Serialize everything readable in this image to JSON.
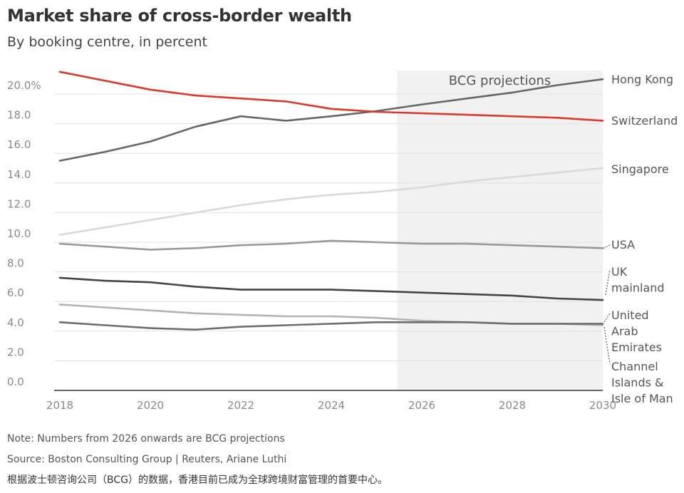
{
  "title": "Market share of cross-border wealth",
  "subtitle": "By booking centre, in percent",
  "note": "Note: Numbers from 2026 onwards are BCG projections",
  "source": "Source: Boston Consulting Group | Reuters, Ariane Luthi",
  "chinese_note": "根据波士顿咨询公司（BCG）的数据，香港目前已成为全球跨境财富管理的首要中心。",
  "chart_data": {
    "type": "line",
    "title": "Market share of cross-border wealth",
    "subtitle": "By booking centre, in percent",
    "x": [
      2018,
      2019,
      2020,
      2021,
      2022,
      2023,
      2024,
      2025,
      2026,
      2027,
      2028,
      2029,
      2030
    ],
    "x_ticks": [
      "2018",
      "2020",
      "2022",
      "2024",
      "2026",
      "2028",
      "2030"
    ],
    "y_ticks": [
      "0.0",
      "2.0",
      "4.0",
      "6.0",
      "8.0",
      "10.0",
      "12.0",
      "14.0",
      "16.0",
      "18.0",
      "20.0%"
    ],
    "ylim": [
      0,
      21.5
    ],
    "xlim": [
      2018,
      2030
    ],
    "grid": true,
    "projection_band": {
      "label": "BCG projections",
      "from": 2025.45,
      "to": 2030
    },
    "series": [
      {
        "name": "Hong Kong",
        "color": "#666666",
        "values": [
          15.5,
          16.1,
          16.8,
          17.8,
          18.5,
          18.2,
          18.5,
          18.85,
          19.3,
          19.7,
          20.1,
          20.6,
          21.0
        ]
      },
      {
        "name": "Switzerland",
        "color": "#d93a2b",
        "values": [
          21.5,
          20.9,
          20.3,
          19.9,
          19.7,
          19.5,
          19.0,
          18.8,
          18.7,
          18.6,
          18.5,
          18.4,
          18.2
        ]
      },
      {
        "name": "Singapore",
        "color": "#d9d9d9",
        "values": [
          10.5,
          11.0,
          11.5,
          12.0,
          12.5,
          12.9,
          13.2,
          13.4,
          13.7,
          14.1,
          14.4,
          14.7,
          15.0
        ]
      },
      {
        "name": "USA",
        "color": "#999999",
        "values": [
          9.9,
          9.7,
          9.5,
          9.6,
          9.8,
          9.9,
          10.1,
          10.0,
          9.9,
          9.9,
          9.8,
          9.7,
          9.6
        ]
      },
      {
        "name": "UK mainland",
        "color": "#444444",
        "values": [
          7.6,
          7.4,
          7.3,
          7.0,
          6.8,
          6.8,
          6.8,
          6.7,
          6.6,
          6.5,
          6.4,
          6.2,
          6.1
        ]
      },
      {
        "name": "United Arab Emirates",
        "color": "#6e6e6e",
        "values": [
          4.6,
          4.4,
          4.2,
          4.1,
          4.3,
          4.4,
          4.5,
          4.6,
          4.6,
          4.6,
          4.5,
          4.5,
          4.5
        ]
      },
      {
        "name": "Channel Islands & Isle of Man",
        "color": "#b3b3b3",
        "values": [
          5.8,
          5.6,
          5.4,
          5.2,
          5.1,
          5.0,
          5.0,
          4.9,
          4.7,
          4.6,
          4.5,
          4.5,
          4.4
        ]
      }
    ],
    "series_labels": [
      {
        "series": "Hong Kong",
        "lines": [
          "Hong Kong"
        ]
      },
      {
        "series": "Switzerland",
        "lines": [
          "Switzerland"
        ]
      },
      {
        "series": "Singapore",
        "lines": [
          "Singapore"
        ]
      },
      {
        "series": "USA",
        "lines": [
          "USA"
        ]
      },
      {
        "series": "UK mainland",
        "lines": [
          "UK",
          "mainland"
        ]
      },
      {
        "series": "United Arab Emirates",
        "lines": [
          "United",
          "Arab",
          "Emirates"
        ]
      },
      {
        "series": "Channel Islands & Isle of Man",
        "lines": [
          "Channel",
          "Islands &",
          "Isle of Man"
        ]
      }
    ]
  }
}
